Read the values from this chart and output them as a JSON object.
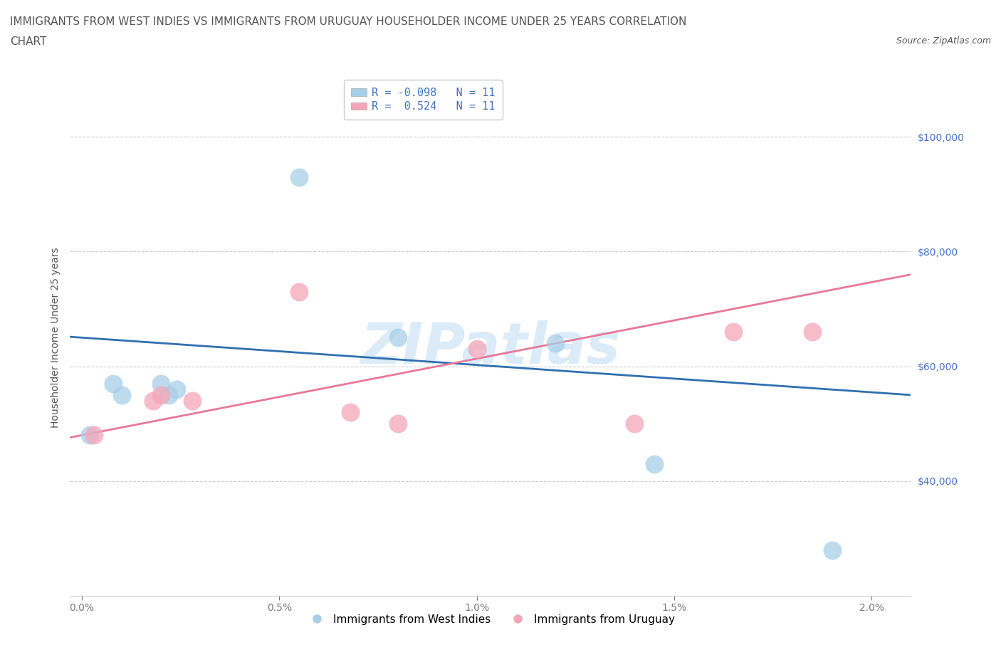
{
  "title_line1": "IMMIGRANTS FROM WEST INDIES VS IMMIGRANTS FROM URUGUAY HOUSEHOLDER INCOME UNDER 25 YEARS CORRELATION",
  "title_line2": "CHART",
  "source_text": "Source: ZipAtlas.com",
  "ylabel": "Householder Income Under 25 years",
  "xlabel_ticks": [
    "0.0%",
    "0.5%",
    "1.0%",
    "1.5%",
    "2.0%"
  ],
  "xlabel_tick_vals": [
    0.0,
    0.005,
    0.01,
    0.015,
    0.02
  ],
  "right_ytick_labels": [
    "$40,000",
    "$60,000",
    "$80,000",
    "$100,000"
  ],
  "right_ytick_vals": [
    40000,
    60000,
    80000,
    100000
  ],
  "watermark": "ZIPatlas",
  "legend_label1": "Immigrants from West Indies",
  "legend_label2": "Immigrants from Uruguay",
  "R1": -0.098,
  "N1": 11,
  "R2": 0.524,
  "N2": 11,
  "color_blue": "#a8cfe8",
  "color_pink": "#f4a6b8",
  "line_blue": "#3070b0",
  "line_pink": "#e87898",
  "west_indies_x": [
    0.0002,
    0.0008,
    0.001,
    0.002,
    0.0022,
    0.0024,
    0.0055,
    0.008,
    0.012,
    0.0145,
    0.019
  ],
  "west_indies_y": [
    48000,
    57000,
    55000,
    57000,
    55000,
    56000,
    93000,
    65000,
    64000,
    43000,
    28000
  ],
  "uruguay_x": [
    0.0003,
    0.0018,
    0.002,
    0.0028,
    0.0055,
    0.0068,
    0.008,
    0.01,
    0.014,
    0.0165,
    0.0185
  ],
  "uruguay_y": [
    48000,
    54000,
    55000,
    54000,
    73000,
    52000,
    50000,
    63000,
    50000,
    66000,
    66000
  ],
  "ylim": [
    20000,
    110000
  ],
  "xlim": [
    -0.0003,
    0.021
  ],
  "background_color": "#ffffff",
  "grid_color": "#cccccc",
  "title_color": "#555555",
  "right_axis_color": "#4472c4",
  "title_fontsize": 11,
  "source_fontsize": 9
}
